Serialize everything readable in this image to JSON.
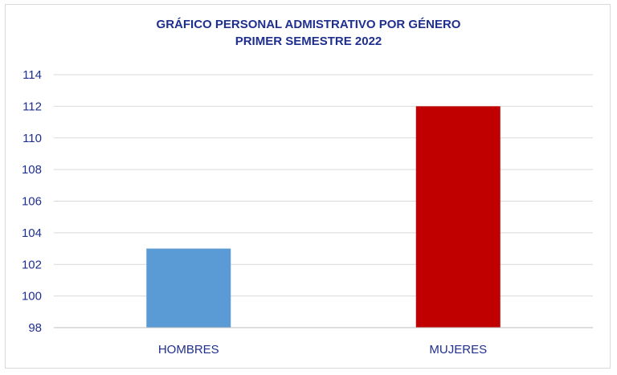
{
  "chart_data": {
    "type": "bar",
    "title": "GRÁFICO PERSONAL ADMISTRATIVO POR GÉNERO",
    "subtitle": "PRIMER SEMESTRE 2022",
    "categories": [
      "HOMBRES",
      "MUJERES"
    ],
    "values": [
      103,
      112
    ],
    "colors": [
      "#5b9bd5",
      "#c00000"
    ],
    "ylim": [
      98,
      114
    ],
    "yticks": [
      98,
      100,
      102,
      104,
      106,
      108,
      110,
      112,
      114
    ],
    "grid": true,
    "text_color": "#1f2f8f",
    "grid_color": "#d9d9d9"
  }
}
